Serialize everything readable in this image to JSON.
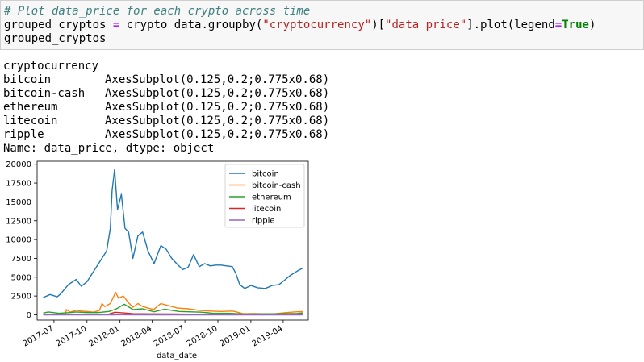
{
  "input_cell": {
    "comment": "# Plot data_price for each crypto across time",
    "line2": {
      "var": "grouped_cryptos",
      "op": "=",
      "call_start": "crypto_data.groupby(",
      "arg1": "\"cryptocurrency\"",
      "mid": ")[",
      "arg2": "\"data_price\"",
      "call_end": "].plot(legend",
      "op2": "=",
      "kw": "True",
      "close": ")"
    },
    "line3": "grouped_cryptos"
  },
  "output": {
    "header": "cryptocurrency",
    "rows": [
      {
        "name": "bitcoin",
        "value": "AxesSubplot(0.125,0.2;0.775x0.68)"
      },
      {
        "name": "bitcoin-cash",
        "value": "AxesSubplot(0.125,0.2;0.775x0.68)"
      },
      {
        "name": "ethereum",
        "value": "AxesSubplot(0.125,0.2;0.775x0.68)"
      },
      {
        "name": "litecoin",
        "value": "AxesSubplot(0.125,0.2;0.775x0.68)"
      },
      {
        "name": "ripple",
        "value": "AxesSubplot(0.125,0.2;0.775x0.68)"
      }
    ],
    "footer": "Name: data_price, dtype: object"
  },
  "chart_data": {
    "type": "line",
    "xlabel": "data_date",
    "ylabel": "",
    "title": "",
    "xlim": [
      "2017-05-15",
      "2019-06-10"
    ],
    "ylim": [
      -700,
      20400
    ],
    "x_ticks": [
      "2017-07",
      "2017-10",
      "2018-01",
      "2018-04",
      "2018-07",
      "2018-10",
      "2019-01",
      "2019-04"
    ],
    "y_ticks": [
      0,
      2500,
      5000,
      7500,
      10000,
      12500,
      15000,
      17500,
      20000
    ],
    "legend_position": "top-right",
    "series": [
      {
        "name": "bitcoin",
        "color": "#1f77b4",
        "x": [
          "2017-06-01",
          "2017-06-20",
          "2017-07-10",
          "2017-07-20",
          "2017-08-10",
          "2017-09-01",
          "2017-09-15",
          "2017-10-01",
          "2017-10-20",
          "2017-11-05",
          "2017-11-25",
          "2017-12-05",
          "2017-12-10",
          "2017-12-17",
          "2017-12-25",
          "2018-01-05",
          "2018-01-15",
          "2018-01-25",
          "2018-02-06",
          "2018-02-20",
          "2018-03-05",
          "2018-03-20",
          "2018-04-06",
          "2018-04-25",
          "2018-05-10",
          "2018-05-25",
          "2018-06-10",
          "2018-06-25",
          "2018-07-10",
          "2018-07-25",
          "2018-08-10",
          "2018-08-25",
          "2018-09-10",
          "2018-09-25",
          "2018-10-10",
          "2018-10-25",
          "2018-11-10",
          "2018-11-20",
          "2018-12-01",
          "2018-12-15",
          "2019-01-01",
          "2019-01-20",
          "2019-02-10",
          "2019-03-01",
          "2019-03-20",
          "2019-04-02",
          "2019-04-20",
          "2019-05-10",
          "2019-05-25"
        ],
        "y": [
          2300,
          2700,
          2400,
          2800,
          4000,
          4700,
          3800,
          4400,
          5800,
          7000,
          8500,
          11500,
          16500,
          19300,
          14000,
          16000,
          11500,
          11000,
          7500,
          10500,
          11000,
          8500,
          6800,
          9200,
          8700,
          7500,
          6700,
          6000,
          6300,
          8000,
          6400,
          6800,
          6500,
          6600,
          6600,
          6500,
          6400,
          5500,
          4000,
          3500,
          3900,
          3600,
          3500,
          3900,
          4000,
          4500,
          5200,
          5800,
          6200
        ]
      },
      {
        "name": "bitcoin-cash",
        "color": "#ff7f0e",
        "x": [
          "2017-08-01",
          "2017-08-05",
          "2017-08-15",
          "2017-09-01",
          "2017-09-15",
          "2017-10-01",
          "2017-10-20",
          "2017-11-05",
          "2017-11-12",
          "2017-11-20",
          "2017-12-05",
          "2017-12-20",
          "2017-12-28",
          "2018-01-10",
          "2018-01-25",
          "2018-02-06",
          "2018-02-20",
          "2018-03-05",
          "2018-03-20",
          "2018-04-05",
          "2018-04-25",
          "2018-05-10",
          "2018-06-10",
          "2018-07-10",
          "2018-08-10",
          "2018-09-10",
          "2018-10-10",
          "2018-11-10",
          "2018-11-20",
          "2018-12-10",
          "2019-01-10",
          "2019-02-10",
          "2019-03-10",
          "2019-04-10",
          "2019-05-10",
          "2019-05-25"
        ],
        "y": [
          0,
          700,
          350,
          600,
          500,
          450,
          350,
          600,
          1500,
          1100,
          1500,
          3000,
          2200,
          2500,
          1600,
          1000,
          1500,
          1100,
          900,
          700,
          1500,
          1300,
          900,
          800,
          600,
          500,
          450,
          500,
          400,
          150,
          160,
          130,
          150,
          300,
          400,
          420
        ]
      },
      {
        "name": "ethereum",
        "color": "#2ca02c",
        "x": [
          "2017-06-01",
          "2017-06-15",
          "2017-07-15",
          "2017-08-15",
          "2017-09-01",
          "2017-10-01",
          "2017-11-01",
          "2017-12-01",
          "2017-12-20",
          "2018-01-13",
          "2018-02-06",
          "2018-03-05",
          "2018-04-06",
          "2018-05-05",
          "2018-06-15",
          "2018-08-15",
          "2018-09-15",
          "2018-11-01",
          "2018-12-15",
          "2019-01-15",
          "2019-03-15",
          "2019-05-10",
          "2019-05-25"
        ],
        "y": [
          230,
          380,
          200,
          300,
          380,
          300,
          300,
          450,
          750,
          1400,
          700,
          800,
          400,
          750,
          450,
          350,
          220,
          200,
          90,
          130,
          140,
          180,
          240
        ]
      },
      {
        "name": "litecoin",
        "color": "#d62728",
        "x": [
          "2017-06-01",
          "2017-08-01",
          "2017-10-01",
          "2017-12-01",
          "2017-12-18",
          "2018-01-10",
          "2018-02-06",
          "2018-04-01",
          "2018-06-01",
          "2018-08-01",
          "2018-10-01",
          "2018-12-15",
          "2019-02-01",
          "2019-04-01",
          "2019-05-25"
        ],
        "y": [
          30,
          45,
          55,
          90,
          340,
          250,
          150,
          120,
          100,
          70,
          50,
          25,
          35,
          70,
          100
        ]
      },
      {
        "name": "ripple",
        "color": "#9467bd",
        "x": [
          "2017-06-01",
          "2017-12-15",
          "2018-01-05",
          "2018-02-06",
          "2018-06-01",
          "2018-12-01",
          "2019-05-25"
        ],
        "y": [
          0.3,
          1,
          3,
          1,
          0.5,
          0.35,
          0.4
        ]
      }
    ]
  }
}
